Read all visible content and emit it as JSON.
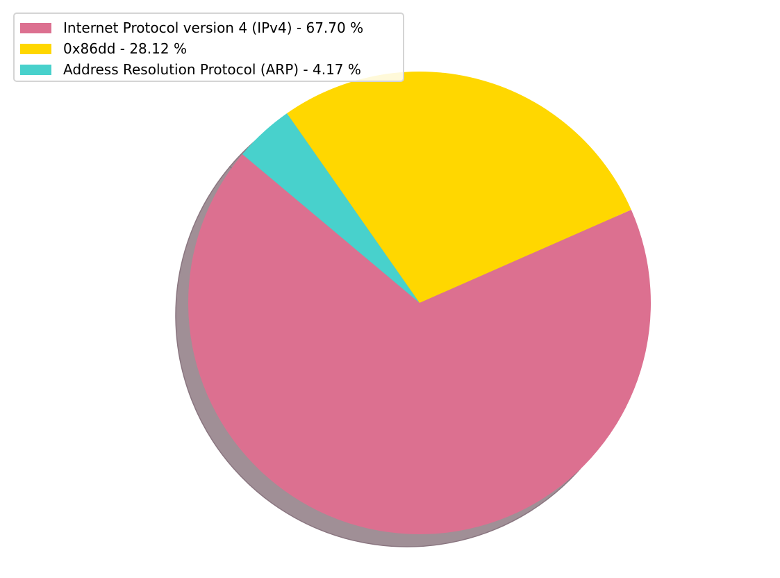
{
  "chart_data": {
    "type": "pie",
    "title": "",
    "categories": [
      "Internet Protocol version 4 (IPv4)",
      "0x86dd",
      "Address Resolution Protocol (ARP)"
    ],
    "values": [
      67.7,
      28.12,
      4.17
    ],
    "colors": [
      "#dc7090",
      "#ffd700",
      "#48d1cc"
    ],
    "shadow": true,
    "shadow_color": "#a08f96",
    "start_angle_deg": 140,
    "direction": "counterclockwise",
    "legend_position": "top-left",
    "legend": [
      {
        "label": "Internet Protocol version 4 (IPv4) - 67.70 %",
        "color": "#dc7090"
      },
      {
        "label": "0x86dd - 28.12 %",
        "color": "#ffd700"
      },
      {
        "label": "Address Resolution Protocol (ARP) - 4.17 %",
        "color": "#48d1cc"
      }
    ]
  }
}
